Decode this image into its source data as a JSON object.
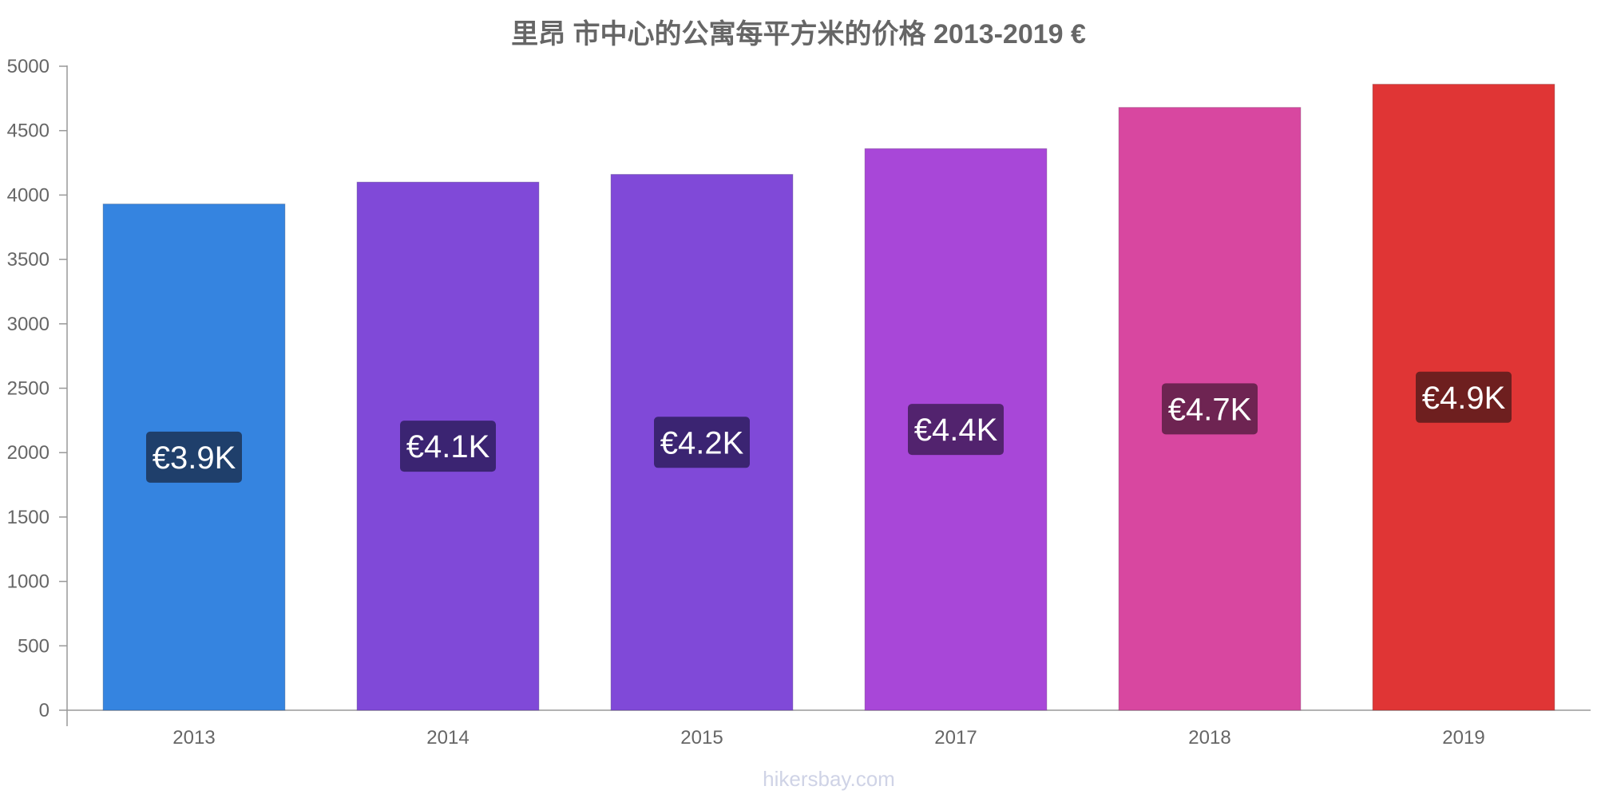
{
  "chart_data": {
    "type": "bar",
    "title": "里昂 市中心的公寓每平方米的价格 2013-2019 €",
    "xlabel": "",
    "ylabel": "",
    "ylim": [
      0,
      5000
    ],
    "yticks": [
      0,
      500,
      1000,
      1500,
      2000,
      2500,
      3000,
      3500,
      4000,
      4500,
      5000
    ],
    "grid": false,
    "categories": [
      "2013",
      "2014",
      "2015",
      "2017",
      "2018",
      "2019"
    ],
    "values": [
      3930,
      4100,
      4160,
      4360,
      4680,
      4860
    ],
    "data_labels": [
      "€3.9K",
      "€4.1K",
      "€4.2K",
      "€4.4K",
      "€4.7K",
      "€4.9K"
    ],
    "bar_colors": [
      "#3584e0",
      "#8049d8",
      "#8049d8",
      "#a847d8",
      "#d847a0",
      "#e03535"
    ],
    "label_colors": [
      "#1f3f6b",
      "#3b2472",
      "#3b2472",
      "#52236e",
      "#6e2452",
      "#6e1f1f"
    ]
  },
  "watermark": "hikersbay.com"
}
